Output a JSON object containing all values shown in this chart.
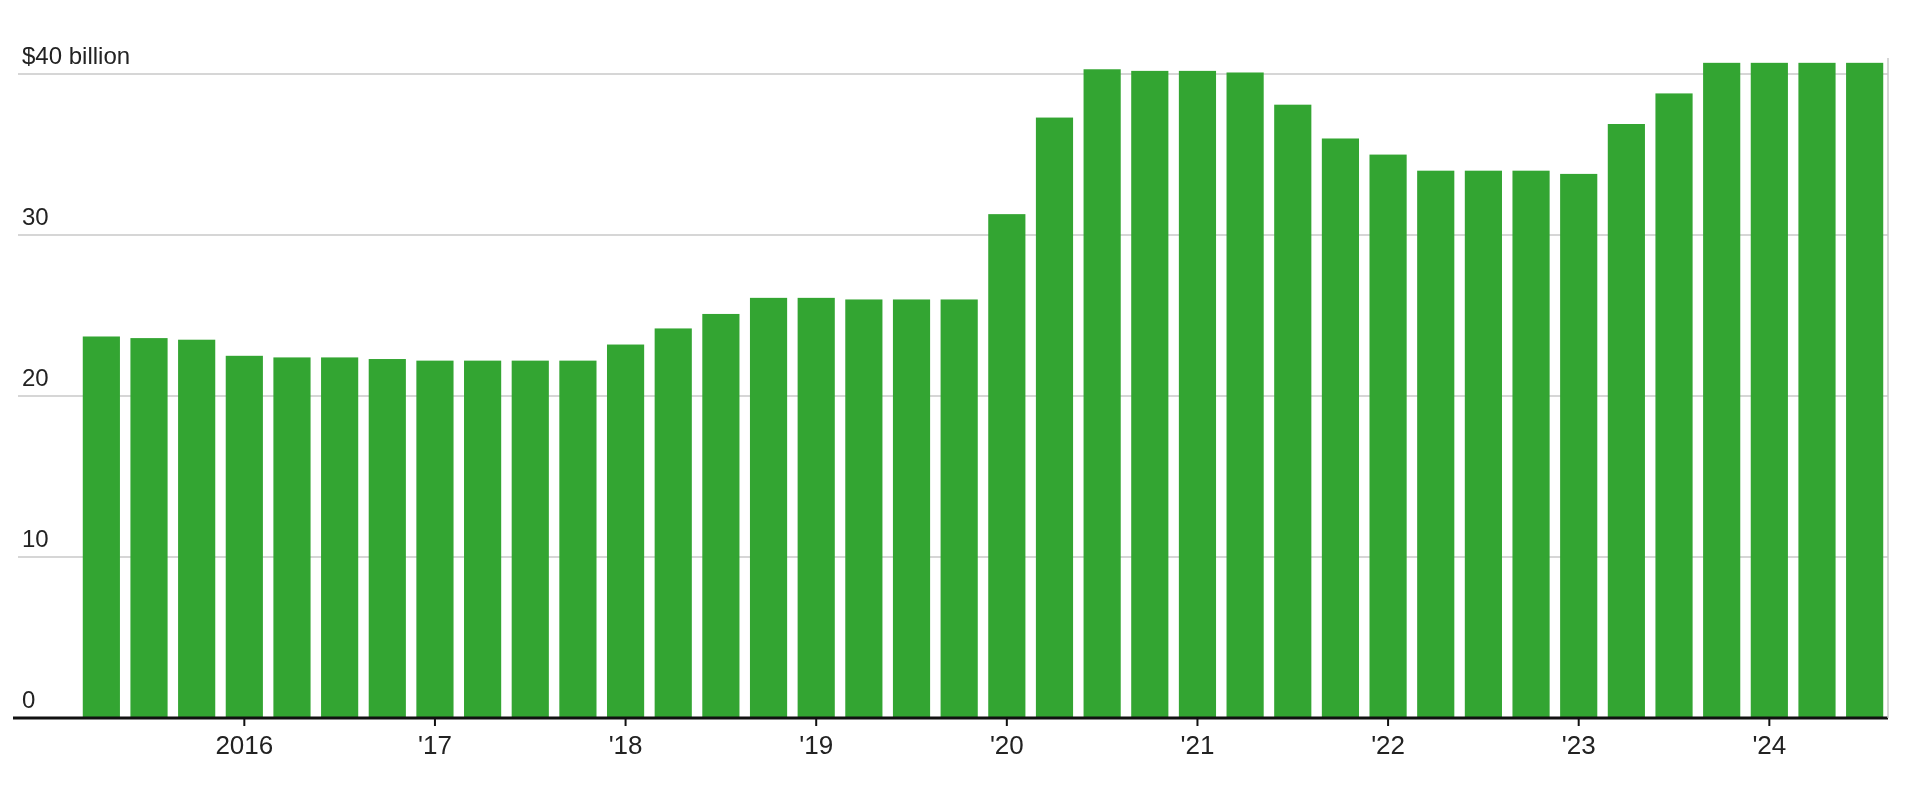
{
  "chart_data": {
    "type": "bar",
    "categories": [
      null,
      null,
      null,
      "2016",
      null,
      null,
      null,
      "'17",
      null,
      null,
      null,
      "'18",
      null,
      null,
      null,
      "'19",
      null,
      null,
      null,
      "'20",
      null,
      null,
      null,
      "'21",
      null,
      null,
      null,
      "'22",
      null,
      null,
      null,
      "'23",
      null,
      null,
      null,
      "'24",
      null,
      null
    ],
    "values": [
      23.7,
      23.6,
      23.5,
      22.5,
      22.4,
      22.4,
      22.3,
      22.2,
      22.2,
      22.2,
      22.2,
      23.2,
      24.2,
      25.1,
      26.1,
      26.1,
      26.0,
      26.0,
      26.0,
      31.3,
      37.3,
      40.3,
      40.2,
      40.2,
      40.1,
      38.1,
      36.0,
      35.0,
      34.0,
      34.0,
      34.0,
      33.8,
      36.9,
      38.8,
      40.7,
      40.7,
      40.7,
      40.7
    ],
    "color": "#33a532",
    "ylim": [
      0,
      41
    ],
    "yticks": [
      0,
      10,
      20,
      30,
      {
        "value": 40,
        "label": "$40 billion"
      }
    ],
    "grid": "y"
  }
}
